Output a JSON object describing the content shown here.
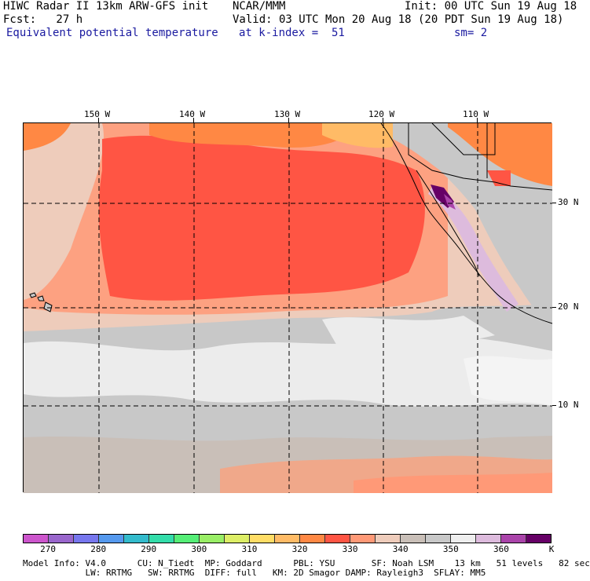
{
  "header": {
    "model_line": "HIWC Radar II 13km ARW-GFS init",
    "ncar": "NCAR/MMM",
    "init": "Init: 00 UTC Sun 19 Aug 18",
    "fcst": "Fcst:   27 h",
    "valid": "Valid: 03 UTC Mon 20 Aug 18 (20 PDT Sun 19 Aug 18)",
    "field": "Equivalent potential temperature",
    "level": "at k-index =  51",
    "smooth": "sm= 2"
  },
  "map": {
    "lon_labels": [
      "150 W",
      "140 W",
      "130 W",
      "120 W",
      "110 W"
    ],
    "lat_labels": [
      "30 N",
      "20 N",
      "10 N"
    ],
    "lons_deg_w": [
      150,
      140,
      130,
      120,
      110
    ],
    "lats_deg_n": [
      30,
      20,
      10
    ]
  },
  "colorbar": {
    "colors": [
      "#cc55cc",
      "#9966cc",
      "#7777ee",
      "#5599ee",
      "#33bbcc",
      "#33ddaa",
      "#55ee77",
      "#99ee66",
      "#ddee66",
      "#ffdd66",
      "#ffbb66",
      "#ff8844",
      "#ff5544",
      "#ff9977",
      "#eeccbb",
      "#c9bfb8",
      "#c8c8c8",
      "#eeeeee",
      "#ddbbdd",
      "#aa44aa",
      "#660066"
    ],
    "labels": [
      "270",
      "280",
      "290",
      "300",
      "310",
      "320",
      "330",
      "340",
      "350",
      "360",
      "K"
    ]
  },
  "footer": {
    "line1": "Model Info: V4.0      CU: N_Tiedt  MP: Goddard      PBL: YSU       SF: Noah LSM    13 km   51 levels   82 sec",
    "line2": "            LW: RRTMG   SW: RRTMG  DIFF: full   KM: 2D Smagor DAMP: Rayleigh3  SFLAY: MM5"
  }
}
